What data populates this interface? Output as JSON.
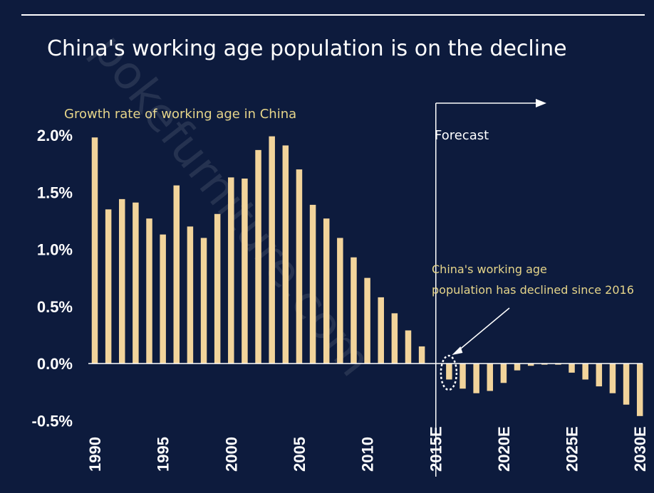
{
  "chart_data": {
    "type": "bar",
    "title": "China's working age population is on the decline",
    "subtitle": "Growth rate of working age in China",
    "x": [
      1990,
      1991,
      1992,
      1993,
      1994,
      1995,
      1996,
      1997,
      1998,
      1999,
      2000,
      2001,
      2002,
      2003,
      2004,
      2005,
      2006,
      2007,
      2008,
      2009,
      2010,
      2011,
      2012,
      2013,
      2014,
      2015,
      2016,
      2017,
      2018,
      2019,
      2020,
      2021,
      2022,
      2023,
      2024,
      2025,
      2026,
      2027,
      2028,
      2029,
      2030
    ],
    "values": [
      1.98,
      1.35,
      1.44,
      1.41,
      1.27,
      1.13,
      1.56,
      1.2,
      1.1,
      1.31,
      1.63,
      1.62,
      1.87,
      1.99,
      1.91,
      1.7,
      1.39,
      1.27,
      1.1,
      0.93,
      0.75,
      0.58,
      0.44,
      0.29,
      0.15,
      0.0,
      -0.14,
      -0.22,
      -0.26,
      -0.24,
      -0.17,
      -0.06,
      -0.02,
      -0.01,
      -0.01,
      -0.08,
      -0.14,
      -0.2,
      -0.26,
      -0.36,
      -0.46
    ],
    "xtick_labels": [
      "1990",
      "1995",
      "2000",
      "2005",
      "2010",
      "2015E",
      "2020E",
      "2025E",
      "2030E"
    ],
    "xtick_years": [
      1990,
      1995,
      2000,
      2005,
      2010,
      2015,
      2020,
      2025,
      2030
    ],
    "yticks": [
      2.0,
      1.5,
      1.0,
      0.5,
      0.0,
      -0.5
    ],
    "ytick_labels": [
      "2.0%",
      "1.5%",
      "1.0%",
      "0.5%",
      "0.0%",
      "-0.5%"
    ],
    "ylim": [
      -0.5,
      2.0
    ],
    "forecast_label": "Forecast",
    "forecast_start": 2015,
    "annotation": {
      "lines": [
        "China's working age",
        "population has declined since 2016"
      ],
      "points_to": 2016
    },
    "colors": {
      "bar": "#f2d49b",
      "background": "#0d1b3d",
      "text": "#ffffff",
      "accent_text": "#e6d58a"
    },
    "grid": false,
    "legend": "none"
  },
  "watermark": "pokefurniture.com"
}
